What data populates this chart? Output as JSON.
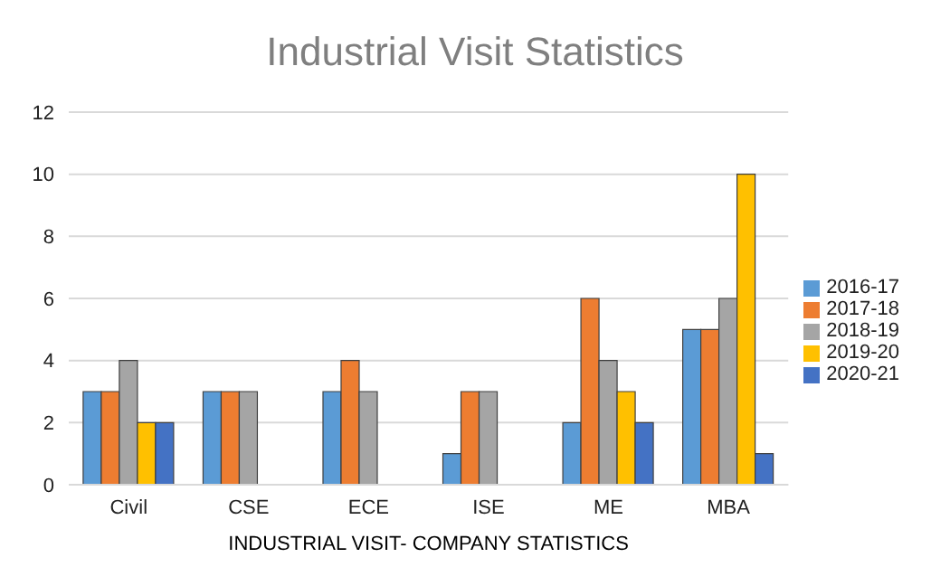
{
  "chart_data": {
    "type": "bar",
    "title": "Industrial Visit Statistics",
    "xlabel": "INDUSTRIAL VISIT- COMPANY STATISTICS",
    "categories": [
      "Civil",
      "CSE",
      "ECE",
      "ISE",
      "ME",
      "MBA"
    ],
    "series": [
      {
        "name": "2016-17",
        "color": "#5b9bd5",
        "values": [
          3,
          3,
          3,
          1,
          2,
          5
        ]
      },
      {
        "name": "2017-18",
        "color": "#ed7d31",
        "values": [
          3,
          3,
          4,
          3,
          6,
          5
        ]
      },
      {
        "name": "2018-19",
        "color": "#a5a5a5",
        "values": [
          4,
          3,
          3,
          3,
          4,
          6
        ]
      },
      {
        "name": "2019-20",
        "color": "#ffc000",
        "values": [
          2,
          0,
          0,
          0,
          3,
          10
        ]
      },
      {
        "name": "2020-21",
        "color": "#4472c4",
        "values": [
          2,
          0,
          0,
          0,
          2,
          1
        ]
      }
    ],
    "ylim": [
      0,
      12
    ],
    "yticks": [
      0,
      2,
      4,
      6,
      8,
      10,
      12
    ],
    "grid": "y",
    "legend": "right"
  }
}
